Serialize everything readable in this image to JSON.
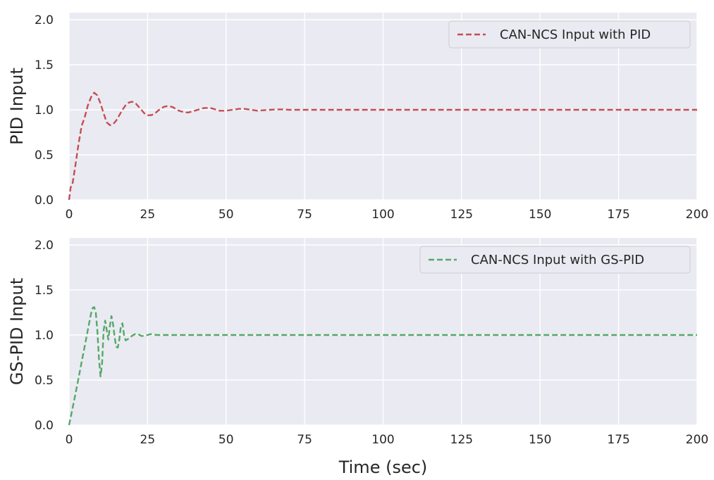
{
  "chart_data": [
    {
      "type": "line",
      "ylabel": "PID Input",
      "xlabel": "",
      "xlim": [
        0,
        200
      ],
      "ylim": [
        0,
        2
      ],
      "xticks": [
        "0",
        "25",
        "50",
        "75",
        "100",
        "125",
        "150",
        "175",
        "200"
      ],
      "yticks": [
        "0.0",
        "0.5",
        "1.0",
        "1.5",
        "2.0"
      ],
      "grid": true,
      "legend_position": "top-right",
      "series": [
        {
          "name": "CAN-NCS Input with PID",
          "color": "#c44e52",
          "line_style": "dashed",
          "x": [
            0,
            0.5,
            1,
            2,
            3,
            4,
            5,
            6,
            7,
            8,
            9,
            10,
            11,
            12,
            13,
            14,
            15,
            16,
            17,
            18,
            19,
            20,
            21,
            22,
            23,
            24,
            25,
            26,
            27,
            28,
            29,
            30,
            31,
            32,
            33,
            34,
            35,
            36,
            37,
            38,
            39,
            40,
            41,
            42,
            43,
            44,
            45,
            46,
            47,
            48,
            49,
            50,
            52,
            54,
            56,
            58,
            60,
            62,
            64,
            66,
            68,
            70,
            75,
            80,
            100,
            125,
            150,
            175,
            200
          ],
          "y": [
            0.0,
            0.14,
            0.16,
            0.38,
            0.62,
            0.82,
            0.92,
            1.05,
            1.14,
            1.19,
            1.16,
            1.07,
            0.96,
            0.86,
            0.83,
            0.84,
            0.88,
            0.94,
            1.0,
            1.05,
            1.08,
            1.09,
            1.08,
            1.04,
            1.0,
            0.96,
            0.94,
            0.94,
            0.95,
            0.98,
            1.01,
            1.03,
            1.04,
            1.04,
            1.03,
            1.01,
            0.99,
            0.98,
            0.97,
            0.97,
            0.98,
            0.99,
            1.0,
            1.01,
            1.02,
            1.02,
            1.02,
            1.01,
            1.0,
            0.99,
            0.99,
            0.99,
            1.0,
            1.01,
            1.01,
            1.0,
            0.99,
            0.995,
            1.0,
            1.005,
            1.005,
            1.0,
            1.0,
            1.0,
            1.0,
            1.0,
            1.0,
            1.0,
            1.0
          ]
        }
      ]
    },
    {
      "type": "line",
      "ylabel": "GS-PID Input",
      "xlabel": "Time (sec)",
      "xlim": [
        0,
        200
      ],
      "ylim": [
        0,
        2
      ],
      "xticks": [
        "0",
        "25",
        "50",
        "75",
        "100",
        "125",
        "150",
        "175",
        "200"
      ],
      "yticks": [
        "0.0",
        "0.5",
        "1.0",
        "1.5",
        "2.0"
      ],
      "grid": true,
      "legend_position": "top-right",
      "series": [
        {
          "name": "CAN-NCS Input with GS-PID",
          "color": "#55a868",
          "line_style": "dashed",
          "x": [
            0,
            1,
            2,
            3,
            4,
            5,
            6,
            7,
            7.5,
            8,
            8.5,
            9,
            9.5,
            10,
            10.5,
            11,
            11.5,
            12,
            12.5,
            13,
            13.5,
            14,
            14.5,
            15,
            15.5,
            16,
            16.5,
            17,
            17.5,
            18,
            19,
            20,
            21,
            22,
            23,
            24,
            25,
            26,
            27,
            28,
            30,
            35,
            40,
            50,
            100,
            150,
            200
          ],
          "y": [
            0.0,
            0.17,
            0.34,
            0.52,
            0.7,
            0.88,
            1.06,
            1.24,
            1.3,
            1.31,
            1.25,
            1.05,
            0.75,
            0.54,
            0.68,
            1.05,
            1.16,
            1.05,
            0.95,
            1.1,
            1.21,
            1.12,
            0.98,
            0.87,
            0.86,
            0.95,
            1.1,
            1.13,
            1.0,
            0.94,
            0.96,
            0.99,
            1.01,
            1.01,
            0.99,
            0.99,
            1.0,
            1.01,
            1.005,
            1.0,
            1.0,
            1.0,
            1.0,
            1.0,
            1.0,
            1.0,
            1.0
          ]
        }
      ]
    }
  ]
}
